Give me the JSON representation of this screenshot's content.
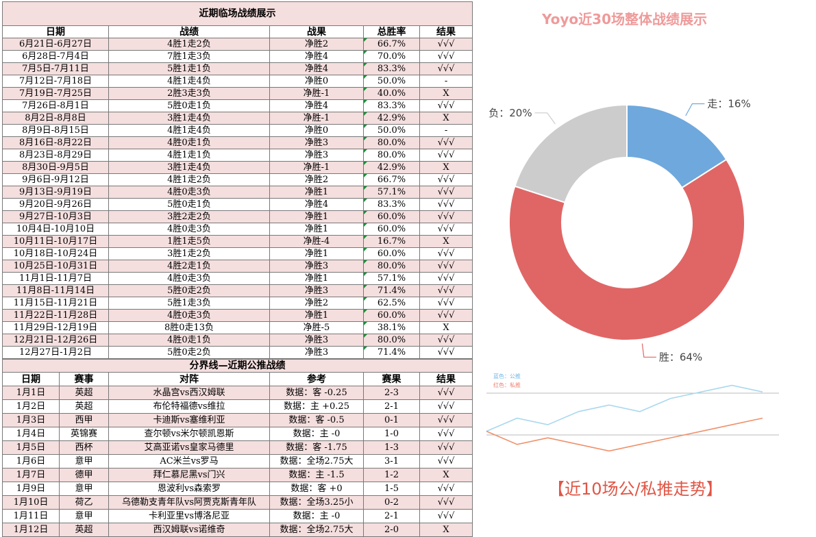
{
  "recent_table": {
    "title": "近期临场战绩展示",
    "headers": [
      "日期",
      "战绩",
      "战果",
      "总胜率",
      "结果"
    ],
    "rows": [
      [
        "6月21日-6月27日",
        "4胜1走2负",
        "净胜2",
        "66.7%",
        "√√√"
      ],
      [
        "6月28日-7月4日",
        "7胜1走3负",
        "净胜4",
        "70.0%",
        "√√√"
      ],
      [
        "7月5日-7月11日",
        "5胜1走1负",
        "净胜4",
        "83.3%",
        "√√√"
      ],
      [
        "7月12日-7月18日",
        "4胜1走4负",
        "净胜0",
        "50.0%",
        "-"
      ],
      [
        "7月19日-7月25日",
        "2胜3走3负",
        "净胜-1",
        "40.0%",
        "X"
      ],
      [
        "7月26日-8月1日",
        "5胜0走1负",
        "净胜4",
        "83.3%",
        "√√√"
      ],
      [
        "8月2日-8月8日",
        "3胜1走4负",
        "净胜-1",
        "42.9%",
        "X"
      ],
      [
        "8月9日-8月15日",
        "4胜1走4负",
        "净胜0",
        "50.0%",
        "-"
      ],
      [
        "8月16日-8月22日",
        "4胜0走1负",
        "净胜3",
        "80.0%",
        "√√√"
      ],
      [
        "8月23日-8月29日",
        "4胜1走1负",
        "净胜3",
        "80.0%",
        "√√√"
      ],
      [
        "8月30日-9月5日",
        "3胜1走4负",
        "净胜-1",
        "42.9%",
        "X"
      ],
      [
        "9月6日-9月12日",
        "4胜1走2负",
        "净胜2",
        "66.7%",
        "√√√"
      ],
      [
        "9月13日-9月19日",
        "4胜0走3负",
        "净胜1",
        "57.1%",
        "√√√"
      ],
      [
        "9月20日-9月26日",
        "5胜0走1负",
        "净胜4",
        "83.3%",
        "√√√"
      ],
      [
        "9月27日-10月3日",
        "3胜2走2负",
        "净胜1",
        "60.0%",
        "√√√"
      ],
      [
        "10月4日-10月10日",
        "4胜0走3负",
        "净胜1",
        "60.0%",
        "√√√"
      ],
      [
        "10月11日-10月17日",
        "1胜1走5负",
        "净胜-4",
        "16.7%",
        "X"
      ],
      [
        "10月18日-10月24日",
        "3胜1走2负",
        "净胜1",
        "60.0%",
        "√√√"
      ],
      [
        "10月25日-10月31日",
        "4胜2走1负",
        "净胜3",
        "80.0%",
        "√√√"
      ],
      [
        "11月1日-11月7日",
        "4胜0走3负",
        "净胜1",
        "57.1%",
        "√√√"
      ],
      [
        "11月8日-11月14日",
        "5胜0走2负",
        "净胜3",
        "71.4%",
        "√√√"
      ],
      [
        "11月15日-11月21日",
        "5胜1走3负",
        "净胜2",
        "62.5%",
        "√√√"
      ],
      [
        "11月22日-11月28日",
        "4胜0走3负",
        "净胜1",
        "60.0%",
        "√√√"
      ],
      [
        "11月29日-12月19日",
        "8胜0走13负",
        "净胜-5",
        "38.1%",
        "X"
      ],
      [
        "12月21日-12月26日",
        "4胜0走1负",
        "净胜3",
        "80.0%",
        "√√√"
      ],
      [
        "12月27日-1月2日",
        "5胜0走2负",
        "净胜3",
        "71.4%",
        "√√√"
      ]
    ]
  },
  "public_table": {
    "title": "分界线—近期公推战绩",
    "headers": [
      "日期",
      "赛事",
      "对阵",
      "参考",
      "赛果",
      "结果"
    ],
    "rows": [
      [
        "1月1日",
        "英超",
        "水晶宫vs西汉姆联",
        "数据：客 -0.25",
        "2-3",
        "√√√"
      ],
      [
        "1月2日",
        "英超",
        "布伦特福德vs维拉",
        "数据：主 +0.25",
        "2-1",
        "√√√"
      ],
      [
        "1月3日",
        "西甲",
        "卡迪斯vs塞维利亚",
        "数据：客 -0.5",
        "0-1",
        "√√√"
      ],
      [
        "1月4日",
        "英锦赛",
        "查尔顿vs米尔顿凯恩斯",
        "数据：主 -0",
        "1-0",
        "√√√"
      ],
      [
        "1月5日",
        "西杯",
        "艾高亚诺vs皇家马德里",
        "数据：客 -1.75",
        "1-3",
        "√√√"
      ],
      [
        "1月6日",
        "意甲",
        "AC米兰vs罗马",
        "数据：全场2.75大",
        "3-1",
        "√√√"
      ],
      [
        "1月7日",
        "德甲",
        "拜仁慕尼黑vs门兴",
        "数据：主 -1.5",
        "1-2",
        "X"
      ],
      [
        "1月9日",
        "意甲",
        "恩波利vs森索罗",
        "数据：客 +0",
        "1-5",
        "√√√"
      ],
      [
        "1月10日",
        "荷乙",
        "乌德勒支青年队vs阿贾克斯青年队",
        "数据：全场3.25小",
        "0-2",
        "√√√"
      ],
      [
        "1月11日",
        "意甲",
        "卡利亚里vs博洛尼亚",
        "数据：主 -0",
        "2-1",
        "√√√"
      ],
      [
        "1月12日",
        "英超",
        "西汉姆联vs诺维奇",
        "数据：全场2.75大",
        "2-0",
        "X"
      ]
    ]
  },
  "pie": {
    "title": "Yoyo近30场整体战绩展示",
    "labels": [
      "走：16%",
      "胜：64%",
      "负：20%"
    ],
    "colors": [
      "#6fa8dc",
      "#e06666",
      "#cccccc"
    ],
    "stray_mark": ","
  },
  "trend": {
    "title": "【近10场公/私推走势】",
    "legend_blue": "蓝色：公推",
    "legend_red": "红色：私推"
  },
  "chart_data": [
    {
      "type": "pie",
      "title": "Yoyo近30场整体战绩展示",
      "categories": [
        "走",
        "胜",
        "负"
      ],
      "values": [
        16,
        64,
        20
      ],
      "unit": "%"
    },
    {
      "type": "line",
      "title": "【近10场公/私推走势】",
      "x": [
        1,
        2,
        3,
        4,
        5,
        6,
        7,
        8,
        9,
        10
      ],
      "series": [
        {
          "name": "公推",
          "values": [
            0,
            2,
            1,
            3,
            4,
            3,
            5,
            6,
            7,
            6
          ]
        },
        {
          "name": "私推",
          "values": [
            0,
            -2,
            -1,
            -2,
            -3,
            -2,
            -1,
            0,
            1,
            2
          ]
        }
      ],
      "colors": {
        "公推": "#a8d8ef",
        "私推": "#f0906a"
      },
      "reference_lines": 2
    }
  ]
}
